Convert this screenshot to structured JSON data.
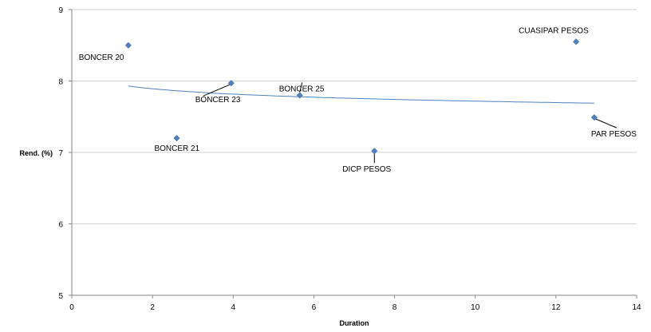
{
  "chart_data": {
    "type": "scatter",
    "xlabel": "Duration",
    "ylabel": "Rend. (%)",
    "xlim": [
      0,
      14
    ],
    "ylim": [
      5,
      9
    ],
    "x_ticks": [
      0,
      2,
      4,
      6,
      8,
      10,
      12,
      14
    ],
    "y_ticks": [
      5,
      6,
      7,
      8,
      9
    ],
    "grid": "horizontal",
    "legend": "none",
    "marker_color": "#4F81BD",
    "trendline_color": "#4F81BD",
    "points": [
      {
        "label": "BONCER 20",
        "x": 1.4,
        "y": 8.5
      },
      {
        "label": "BONCER 21",
        "x": 2.6,
        "y": 7.2
      },
      {
        "label": "BONCER 23",
        "x": 3.95,
        "y": 7.97
      },
      {
        "label": "BONCER 25",
        "x": 5.65,
        "y": 7.8
      },
      {
        "label": "DICP PESOS",
        "x": 7.5,
        "y": 7.02
      },
      {
        "label": "CUASIPAR PESOS",
        "x": 12.5,
        "y": 8.55
      },
      {
        "label": "PAR PESOS",
        "x": 12.95,
        "y": 7.49
      }
    ],
    "trendline": {
      "type": "logarithmic",
      "x_range": [
        1.4,
        12.95
      ],
      "y_at_start": 7.93,
      "y_at_end": 7.69
    }
  }
}
